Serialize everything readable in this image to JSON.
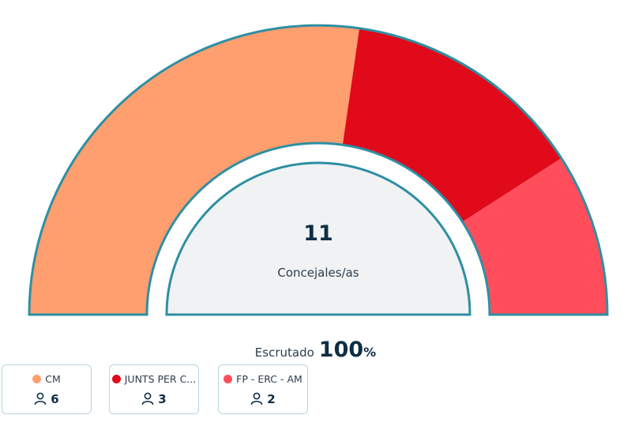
{
  "center": {
    "total": "11",
    "label": "Concejales/as"
  },
  "scrutiny": {
    "label": "Escrutado",
    "value": "100",
    "unit": "%"
  },
  "chart_data": {
    "type": "pie",
    "shape": "semicircle-donut",
    "total_seats": 11,
    "series": [
      {
        "name": "CM",
        "label": "CM",
        "value": 6,
        "color": "#ff9e6e"
      },
      {
        "name": "JUNTS PER CATALUNYA",
        "label": "JUNTS PER C...",
        "value": 3,
        "color": "#e00a1a"
      },
      {
        "name": "FP - ERC - AM",
        "label": "FP - ERC - AM",
        "value": 2,
        "color": "#ff4d5b"
      }
    ],
    "outline_color": "#2e8fa3",
    "inner_fill": "#f0f2f3"
  },
  "icons": {
    "seats": "person-icon"
  }
}
